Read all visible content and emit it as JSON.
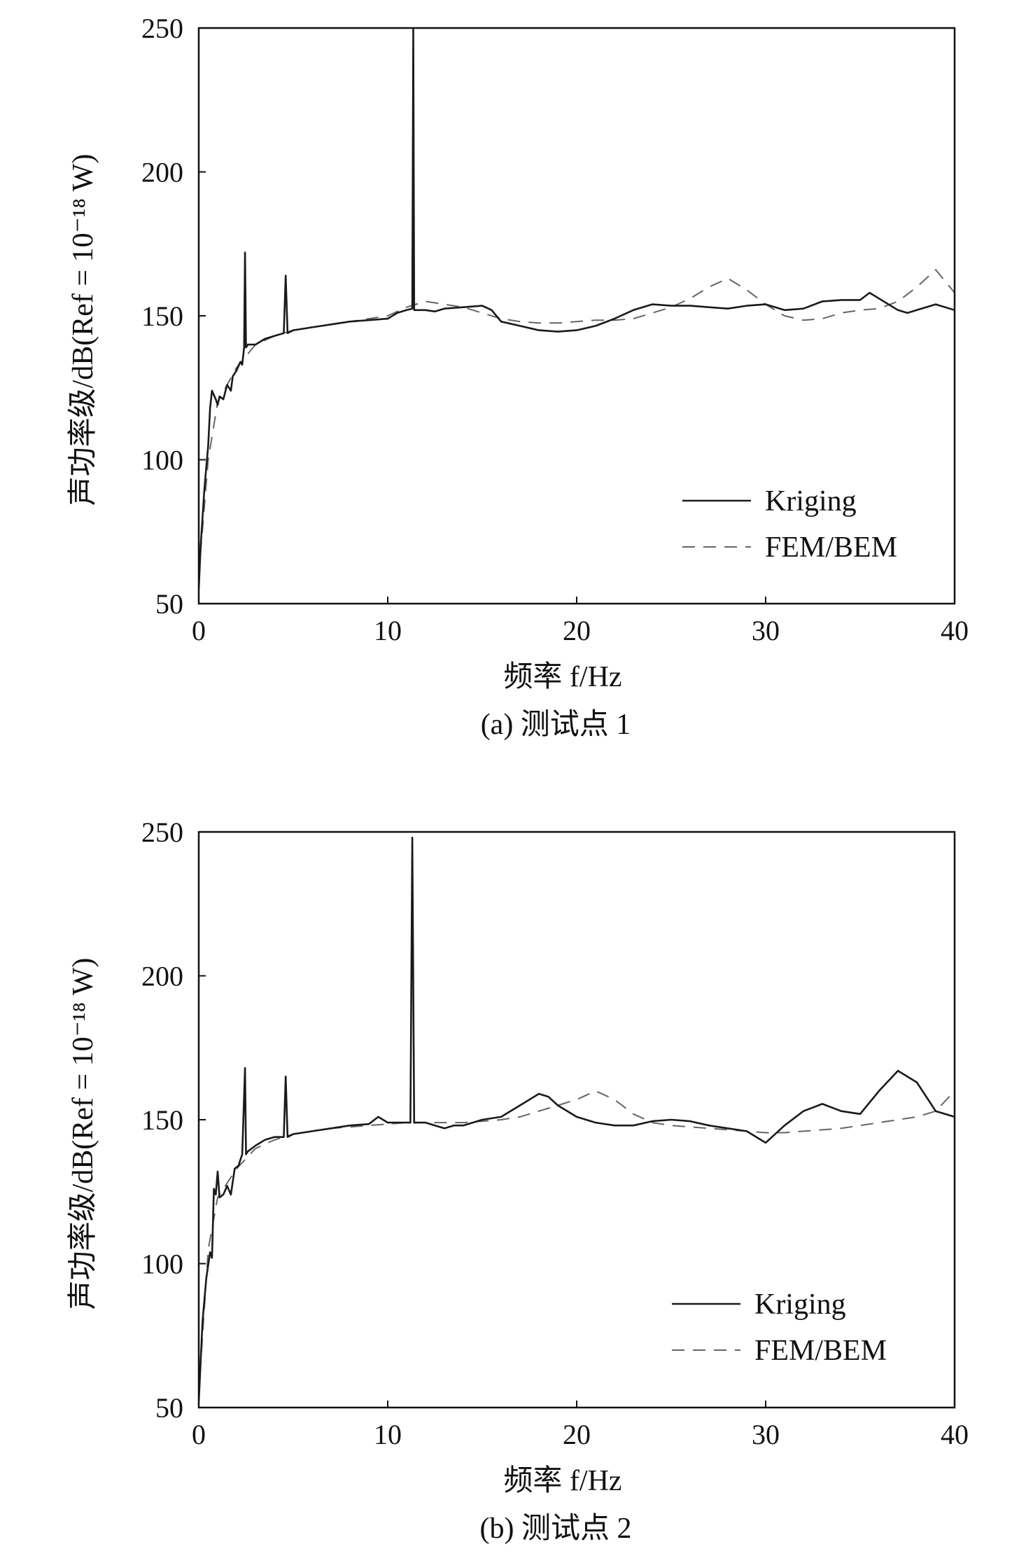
{
  "chart_data": [
    {
      "type": "line",
      "caption": "(a) 测试点 1",
      "xlabel": "频率 f/Hz",
      "ylabel": "声功率级/dB(Ref = 10⁻¹⁸ W)",
      "xlim": [
        0,
        40
      ],
      "ylim": [
        50,
        250
      ],
      "xticks": [
        "0",
        "10",
        "20",
        "30",
        "40"
      ],
      "yticks": [
        "50",
        "100",
        "150",
        "200",
        "250"
      ],
      "legend_position": "bottom-right",
      "series": [
        {
          "name": "Kriging",
          "style": "solid",
          "color": "#1a1a1a",
          "points": [
            [
              0,
              55
            ],
            [
              0.1,
              70
            ],
            [
              0.3,
              90
            ],
            [
              0.5,
              105
            ],
            [
              0.6,
              118
            ],
            [
              0.7,
              124
            ],
            [
              0.9,
              121
            ],
            [
              1.0,
              119
            ],
            [
              1.1,
              122
            ],
            [
              1.3,
              121
            ],
            [
              1.5,
              126
            ],
            [
              1.7,
              124
            ],
            [
              1.8,
              129
            ],
            [
              2.0,
              131
            ],
            [
              2.2,
              134
            ],
            [
              2.3,
              133
            ],
            [
              2.4,
              139
            ],
            [
              2.45,
              172
            ],
            [
              2.5,
              139
            ],
            [
              2.6,
              140
            ],
            [
              3.0,
              140
            ],
            [
              3.5,
              142
            ],
            [
              4.0,
              143
            ],
            [
              4.5,
              144
            ],
            [
              4.6,
              164
            ],
            [
              4.7,
              144
            ],
            [
              5.0,
              145
            ],
            [
              6,
              146
            ],
            [
              7,
              147
            ],
            [
              8,
              148
            ],
            [
              9,
              148.5
            ],
            [
              10,
              149
            ],
            [
              10.5,
              151
            ],
            [
              11,
              152
            ],
            [
              11.3,
              152.5
            ],
            [
              11.35,
              250
            ],
            [
              11.4,
              152
            ],
            [
              12,
              152
            ],
            [
              12.5,
              151.5
            ],
            [
              13,
              152.5
            ],
            [
              14,
              153
            ],
            [
              15,
              153.5
            ],
            [
              15.5,
              152
            ],
            [
              16,
              148
            ],
            [
              17,
              146.5
            ],
            [
              18,
              145
            ],
            [
              19,
              144.5
            ],
            [
              20,
              145
            ],
            [
              21,
              146.5
            ],
            [
              22,
              149
            ],
            [
              23,
              152
            ],
            [
              24,
              154
            ],
            [
              25,
              153.5
            ],
            [
              26,
              153.5
            ],
            [
              27,
              153
            ],
            [
              28,
              152.5
            ],
            [
              29,
              153.5
            ],
            [
              30,
              154
            ],
            [
              31,
              152
            ],
            [
              32,
              152.5
            ],
            [
              33,
              155
            ],
            [
              34,
              155.5
            ],
            [
              35,
              155.5
            ],
            [
              35.5,
              158
            ],
            [
              36,
              156
            ],
            [
              37,
              152
            ],
            [
              37.5,
              151
            ],
            [
              38,
              152
            ],
            [
              39,
              154
            ],
            [
              40,
              152
            ]
          ]
        },
        {
          "name": "FEM/BEM",
          "style": "dashed",
          "color": "#666666",
          "points": [
            [
              0,
              60
            ],
            [
              0.5,
              100
            ],
            [
              1,
              120
            ],
            [
              2,
              132
            ],
            [
              3,
              140
            ],
            [
              4,
              143
            ],
            [
              5,
              145
            ],
            [
              6,
              146
            ],
            [
              7,
              147
            ],
            [
              8,
              148
            ],
            [
              9,
              149
            ],
            [
              10,
              150
            ],
            [
              11,
              153
            ],
            [
              12,
              155
            ],
            [
              13,
              154
            ],
            [
              14,
              153
            ],
            [
              15,
              151
            ],
            [
              16,
              149
            ],
            [
              17,
              148
            ],
            [
              18,
              147.5
            ],
            [
              19,
              147.5
            ],
            [
              20,
              148
            ],
            [
              21,
              148.5
            ],
            [
              22,
              148.5
            ],
            [
              23,
              149
            ],
            [
              24,
              151
            ],
            [
              25,
              153
            ],
            [
              26,
              156
            ],
            [
              27,
              160
            ],
            [
              28,
              163
            ],
            [
              29,
              159
            ],
            [
              30,
              154
            ],
            [
              31,
              150
            ],
            [
              32,
              148.5
            ],
            [
              33,
              149
            ],
            [
              34,
              151
            ],
            [
              35,
              152
            ],
            [
              36,
              152.5
            ],
            [
              37,
              155
            ],
            [
              38,
              160
            ],
            [
              39,
              166
            ],
            [
              40,
              158
            ]
          ]
        }
      ]
    },
    {
      "type": "line",
      "caption": "(b) 测试点 2",
      "xlabel": "频率 f/Hz",
      "ylabel": "声功率级/dB(Ref = 10⁻¹⁸ W)",
      "xlim": [
        0,
        40
      ],
      "ylim": [
        50,
        250
      ],
      "xticks": [
        "0",
        "10",
        "20",
        "30",
        "40"
      ],
      "yticks": [
        "50",
        "100",
        "150",
        "200",
        "250"
      ],
      "legend_position": "bottom-right",
      "series": [
        {
          "name": "Kriging",
          "style": "solid",
          "color": "#1a1a1a",
          "points": [
            [
              0,
              52
            ],
            [
              0.2,
              80
            ],
            [
              0.4,
              95
            ],
            [
              0.6,
              104
            ],
            [
              0.7,
              102
            ],
            [
              0.8,
              126
            ],
            [
              0.9,
              124
            ],
            [
              1.0,
              132
            ],
            [
              1.1,
              123
            ],
            [
              1.3,
              124
            ],
            [
              1.5,
              127
            ],
            [
              1.7,
              124
            ],
            [
              1.9,
              133
            ],
            [
              2.1,
              134
            ],
            [
              2.3,
              138
            ],
            [
              2.45,
              168
            ],
            [
              2.5,
              138
            ],
            [
              2.6,
              139
            ],
            [
              3.0,
              141
            ],
            [
              3.5,
              143
            ],
            [
              4.0,
              144
            ],
            [
              4.5,
              144
            ],
            [
              4.6,
              165
            ],
            [
              4.7,
              144
            ],
            [
              5,
              145
            ],
            [
              6,
              146
            ],
            [
              7,
              147
            ],
            [
              8,
              148
            ],
            [
              9,
              148.5
            ],
            [
              9.5,
              151
            ],
            [
              10,
              149
            ],
            [
              11,
              149
            ],
            [
              11.2,
              149
            ],
            [
              11.3,
              248
            ],
            [
              11.4,
              149
            ],
            [
              12,
              149
            ],
            [
              12.5,
              148
            ],
            [
              13,
              147
            ],
            [
              13.5,
              148
            ],
            [
              14,
              148
            ],
            [
              15,
              150
            ],
            [
              16,
              151
            ],
            [
              17,
              155
            ],
            [
              18,
              159
            ],
            [
              18.5,
              158
            ],
            [
              19,
              155
            ],
            [
              20,
              151
            ],
            [
              21,
              149
            ],
            [
              22,
              148
            ],
            [
              23,
              148
            ],
            [
              24,
              149.5
            ],
            [
              25,
              150
            ],
            [
              26,
              149.5
            ],
            [
              27,
              148
            ],
            [
              28,
              147
            ],
            [
              29,
              146
            ],
            [
              30,
              142
            ],
            [
              31,
              148
            ],
            [
              32,
              153
            ],
            [
              33,
              155.5
            ],
            [
              34,
              153
            ],
            [
              35,
              152
            ],
            [
              36,
              160
            ],
            [
              37,
              167
            ],
            [
              38,
              163
            ],
            [
              39,
              153
            ],
            [
              40,
              151
            ]
          ]
        },
        {
          "name": "FEM/BEM",
          "style": "dashed",
          "color": "#666666",
          "points": [
            [
              0,
              55
            ],
            [
              0.5,
              105
            ],
            [
              1,
              123
            ],
            [
              2,
              133
            ],
            [
              3,
              140
            ],
            [
              4,
              143
            ],
            [
              5,
              145
            ],
            [
              6,
              146
            ],
            [
              7,
              147
            ],
            [
              8,
              147.5
            ],
            [
              9,
              148
            ],
            [
              10,
              148.5
            ],
            [
              11,
              149
            ],
            [
              12,
              149
            ],
            [
              13,
              149
            ],
            [
              14,
              149
            ],
            [
              15,
              149.5
            ],
            [
              16,
              150
            ],
            [
              17,
              151
            ],
            [
              18,
              153
            ],
            [
              19,
              155
            ],
            [
              20,
              157
            ],
            [
              21,
              160
            ],
            [
              22,
              157
            ],
            [
              23,
              152
            ],
            [
              24,
              149
            ],
            [
              25,
              148
            ],
            [
              26,
              147.5
            ],
            [
              27,
              147
            ],
            [
              28,
              146.5
            ],
            [
              29,
              146
            ],
            [
              30,
              145.5
            ],
            [
              31,
              145.5
            ],
            [
              32,
              146
            ],
            [
              33,
              146.5
            ],
            [
              34,
              147
            ],
            [
              35,
              148
            ],
            [
              36,
              149
            ],
            [
              37,
              150
            ],
            [
              38,
              151
            ],
            [
              39,
              153
            ],
            [
              40,
              160
            ]
          ]
        }
      ]
    }
  ]
}
